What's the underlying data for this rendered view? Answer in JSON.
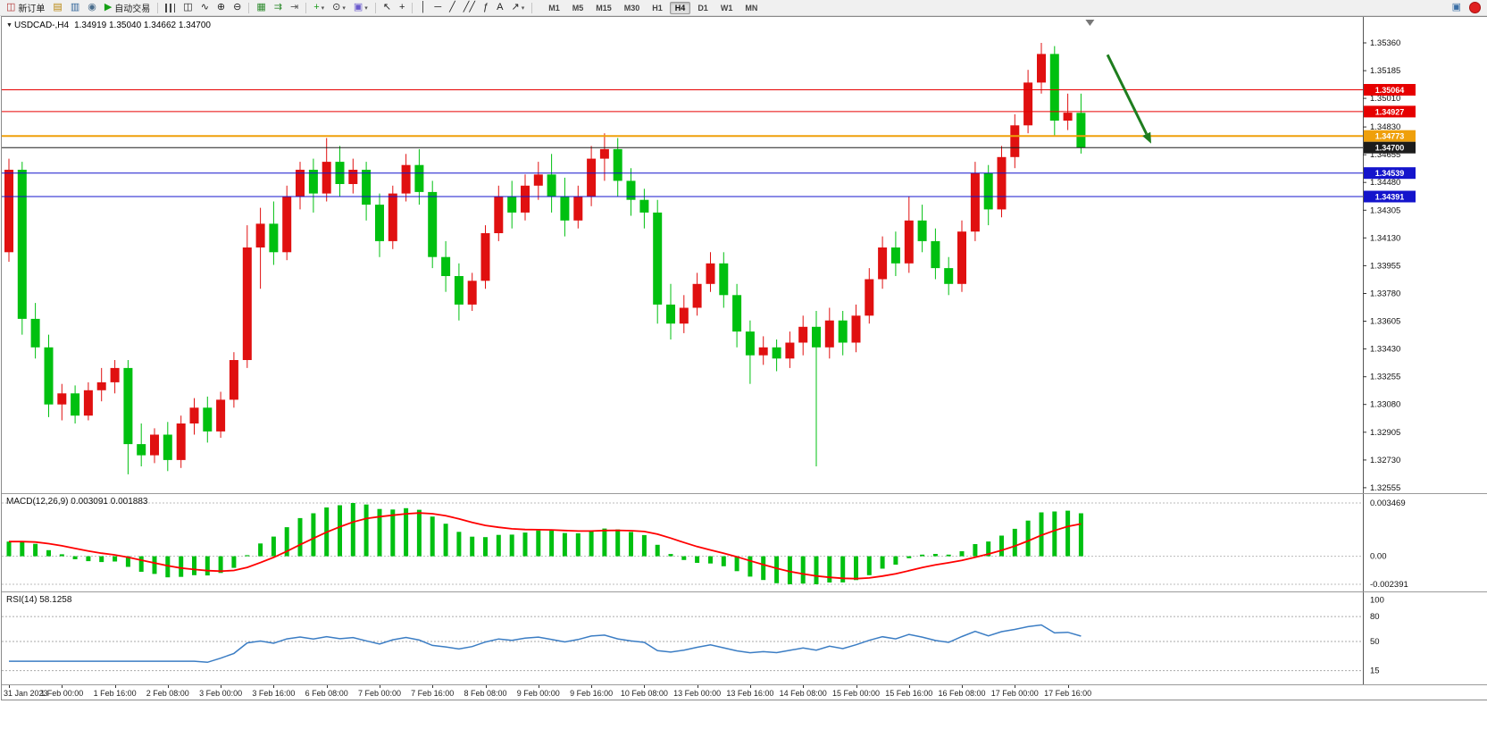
{
  "icons": {
    "chart_marker": "▼"
  },
  "toolbar": {
    "caret_glyph": "▾",
    "buttons": [
      {
        "name": "new-order-button",
        "icon_glyph": "◫",
        "icon_color": "#b03030",
        "label": "新订单"
      },
      {
        "name": "charts-grid-icon",
        "glyph": "▤",
        "color": "#b8860b"
      },
      {
        "name": "market-watch-icon",
        "glyph": "▥",
        "color": "#33669a"
      },
      {
        "name": "navigator-icon",
        "glyph": "◉",
        "color": "#4a6d8c"
      },
      {
        "name": "auto-trading-button",
        "icon_glyph": "▶",
        "icon_color": "#16a016",
        "label": "自动交易"
      },
      {
        "type": "sep"
      },
      {
        "name": "ohlc-bars-icon",
        "cls": "i-bars"
      },
      {
        "name": "candlestick-icon",
        "glyph": "◫",
        "color": "#222222"
      },
      {
        "name": "line-chart-icon",
        "glyph": "∿",
        "color": "#222222"
      },
      {
        "name": "zoom-in-icon",
        "glyph": "⊕",
        "color": "#222222"
      },
      {
        "name": "zoom-out-icon",
        "glyph": "⊖",
        "color": "#222222"
      },
      {
        "type": "sep"
      },
      {
        "name": "tile-windows-icon",
        "glyph": "▦",
        "color": "#2e8b2e"
      },
      {
        "name": "auto-scroll-icon",
        "glyph": "⇉",
        "color": "#2e8b2e"
      },
      {
        "name": "chart-shift-icon",
        "glyph": "⇥",
        "color": "#555555"
      },
      {
        "type": "sep"
      },
      {
        "name": "indicators-icon",
        "glyph": "+",
        "color": "#1a9a1a",
        "caret": true
      },
      {
        "name": "periods-icon",
        "glyph": "⊙",
        "color": "#333333",
        "caret": true
      },
      {
        "name": "templates-icon",
        "glyph": "▣",
        "color": "#6a5acd",
        "caret": true
      },
      {
        "type": "sep"
      },
      {
        "name": "cursor-icon",
        "glyph": "↖",
        "color": "#222222"
      },
      {
        "name": "crosshair-icon",
        "glyph": "+",
        "color": "#222222"
      },
      {
        "type": "sep"
      },
      {
        "name": "vertical-line-icon",
        "glyph": "│",
        "color": "#222222"
      },
      {
        "name": "horizontal-line-icon",
        "glyph": "─",
        "color": "#222222"
      },
      {
        "name": "trendline-icon",
        "glyph": "╱",
        "color": "#222222"
      },
      {
        "name": "channel-icon",
        "glyph": "╱╱",
        "color": "#222222"
      },
      {
        "name": "fibonacci-icon",
        "glyph": "ƒ",
        "color": "#222222"
      },
      {
        "name": "text-icon",
        "glyph": "A",
        "color": "#222222"
      },
      {
        "name": "arrows-icon",
        "glyph": "↗",
        "color": "#222222",
        "caret": true
      },
      {
        "type": "sep"
      }
    ],
    "timeframes": [
      "M1",
      "M5",
      "M15",
      "M30",
      "H1",
      "H4",
      "D1",
      "W1",
      "MN"
    ],
    "active_timeframe": "H4",
    "right_icons": [
      {
        "name": "chart-window-icon",
        "glyph": "▣",
        "color": "#3a6ea5"
      },
      {
        "name": "notification-badge",
        "badge": true
      }
    ]
  },
  "chart_data": {
    "type": "candlestick",
    "symbol_title": "USDCAD-,H4",
    "ohlc_text": "1.34919 1.35040 1.34662 1.34700",
    "ohlc": {
      "open": 1.34919,
      "high": 1.3504,
      "low": 1.34662,
      "close": 1.347
    },
    "price_axis_labels": [
      "1.35360",
      "1.35185",
      "1.35010",
      "1.34830",
      "1.34655",
      "1.34480",
      "1.34305",
      "1.34130",
      "1.33955",
      "1.33780",
      "1.33605",
      "1.33430",
      "1.33255",
      "1.33080",
      "1.32905",
      "1.32730",
      "1.32555"
    ],
    "x_labels": [
      "31 Jan 2023",
      "1 Feb 00:00",
      "1 Feb 16:00",
      "2 Feb 08:00",
      "3 Feb 00:00",
      "3 Feb 16:00",
      "6 Feb 08:00",
      "7 Feb 00:00",
      "7 Feb 16:00",
      "8 Feb 08:00",
      "9 Feb 00:00",
      "9 Feb 16:00",
      "10 Feb 08:00",
      "13 Feb 00:00",
      "13 Feb 16:00",
      "14 Feb 08:00",
      "15 Feb 00:00",
      "15 Feb 16:00",
      "16 Feb 08:00",
      "17 Feb 00:00",
      "17 Feb 16:00"
    ],
    "candles": {
      "open": [
        1.3404,
        1.3456,
        1.3362,
        1.3344,
        1.3308,
        1.3315,
        1.3301,
        1.3317,
        1.3322,
        1.3331,
        1.3283,
        1.3276,
        1.3289,
        1.3273,
        1.3296,
        1.3306,
        1.3291,
        1.3311,
        1.3336,
        1.3407,
        1.3422,
        1.3404,
        1.3439,
        1.3456,
        1.3441,
        1.3461,
        1.3447,
        1.3456,
        1.3434,
        1.3411,
        1.3441,
        1.3459,
        1.3442,
        1.3401,
        1.3389,
        1.3371,
        1.3386,
        1.3416,
        1.3439,
        1.3429,
        1.3446,
        1.3453,
        1.3439,
        1.3424,
        1.3439,
        1.3463,
        1.3469,
        1.3449,
        1.3437,
        1.3429,
        1.3371,
        1.3359,
        1.3369,
        1.3384,
        1.3397,
        1.3377,
        1.3354,
        1.3339,
        1.3344,
        1.3337,
        1.3347,
        1.3357,
        1.3344,
        1.3361,
        1.3347,
        1.3364,
        1.3387,
        1.3407,
        1.3397,
        1.3424,
        1.3411,
        1.3394,
        1.3384,
        1.3417,
        1.3454,
        1.3431,
        1.3464,
        1.3484,
        1.3511,
        1.3529,
        1.3487,
        1.34919
      ],
      "high": [
        1.3463,
        1.3461,
        1.3372,
        1.3352,
        1.3321,
        1.332,
        1.3322,
        1.3331,
        1.3336,
        1.3336,
        1.3296,
        1.3293,
        1.3297,
        1.3301,
        1.3312,
        1.3313,
        1.3316,
        1.3341,
        1.3421,
        1.3432,
        1.3436,
        1.3446,
        1.3461,
        1.3463,
        1.3476,
        1.3471,
        1.3463,
        1.3461,
        1.3441,
        1.3446,
        1.3466,
        1.3469,
        1.3449,
        1.3411,
        1.3397,
        1.3391,
        1.3421,
        1.3446,
        1.3449,
        1.3453,
        1.3461,
        1.3466,
        1.3451,
        1.3446,
        1.3471,
        1.3479,
        1.3476,
        1.3457,
        1.3444,
        1.3437,
        1.3384,
        1.3377,
        1.3391,
        1.3404,
        1.3404,
        1.3384,
        1.3361,
        1.3351,
        1.3349,
        1.3354,
        1.3364,
        1.3367,
        1.3369,
        1.3367,
        1.3371,
        1.3394,
        1.3414,
        1.3417,
        1.3439,
        1.3434,
        1.3419,
        1.3401,
        1.3424,
        1.3461,
        1.3459,
        1.3471,
        1.3491,
        1.3519,
        1.3536,
        1.3534,
        1.3504,
        1.3504
      ],
      "low": [
        1.3398,
        1.3352,
        1.3337,
        1.33,
        1.3298,
        1.3296,
        1.3298,
        1.331,
        1.3315,
        1.3264,
        1.3269,
        1.3271,
        1.3266,
        1.3268,
        1.3289,
        1.3284,
        1.3287,
        1.3306,
        1.3331,
        1.3381,
        1.3396,
        1.3399,
        1.3431,
        1.3429,
        1.3436,
        1.3439,
        1.3441,
        1.3424,
        1.3401,
        1.3406,
        1.3436,
        1.3434,
        1.3394,
        1.3379,
        1.3361,
        1.3367,
        1.3381,
        1.3411,
        1.3419,
        1.3424,
        1.3437,
        1.3429,
        1.3414,
        1.3419,
        1.3433,
        1.3449,
        1.3439,
        1.3427,
        1.3419,
        1.3359,
        1.3349,
        1.3353,
        1.3364,
        1.3379,
        1.3369,
        1.3344,
        1.3321,
        1.3333,
        1.3329,
        1.3331,
        1.3339,
        1.3269,
        1.3337,
        1.3339,
        1.3341,
        1.3359,
        1.3381,
        1.3389,
        1.3391,
        1.3404,
        1.3387,
        1.3377,
        1.3379,
        1.3411,
        1.3421,
        1.3426,
        1.3457,
        1.3479,
        1.3504,
        1.3477,
        1.3481,
        1.34662
      ],
      "close": [
        1.3456,
        1.3362,
        1.3344,
        1.3308,
        1.3315,
        1.3301,
        1.3317,
        1.3322,
        1.3331,
        1.3283,
        1.3276,
        1.3289,
        1.3273,
        1.3296,
        1.3306,
        1.3291,
        1.3311,
        1.3336,
        1.3407,
        1.3422,
        1.3404,
        1.3439,
        1.3456,
        1.3441,
        1.3461,
        1.3447,
        1.3456,
        1.3434,
        1.3411,
        1.3441,
        1.3459,
        1.3442,
        1.3401,
        1.3389,
        1.3371,
        1.3386,
        1.3416,
        1.3439,
        1.3429,
        1.3446,
        1.3453,
        1.3439,
        1.3424,
        1.3439,
        1.3463,
        1.3469,
        1.3449,
        1.3437,
        1.3429,
        1.3371,
        1.3359,
        1.3369,
        1.3384,
        1.3397,
        1.3377,
        1.3354,
        1.3339,
        1.3344,
        1.3337,
        1.3347,
        1.3357,
        1.3344,
        1.3361,
        1.3347,
        1.3364,
        1.3387,
        1.3407,
        1.3397,
        1.3424,
        1.3411,
        1.3394,
        1.3384,
        1.3417,
        1.3454,
        1.3431,
        1.3464,
        1.3484,
        1.3511,
        1.3529,
        1.3487,
        1.3492,
        1.347
      ]
    },
    "colors": {
      "bull": "#e01010",
      "bear": "#00c010",
      "macd_hist": "#00c010",
      "macd_signal": "#ff0000",
      "rsi_line": "#3b7dc4",
      "background": "#ffffff"
    },
    "horizontal_lines": [
      {
        "name": "resistance-line-1",
        "price": 1.35064,
        "label": "1.35064",
        "color": "#e60000",
        "width": 1
      },
      {
        "name": "resistance-line-2",
        "price": 1.34927,
        "label": "1.34927",
        "color": "#e60000",
        "width": 1
      },
      {
        "name": "pivot-line",
        "price": 1.34773,
        "label": "1.34773",
        "color": "#efa00b",
        "width": 2
      },
      {
        "name": "current-price-line",
        "price": 1.347,
        "label": "1.34700",
        "color": "#1c1c1c",
        "width": 1
      },
      {
        "name": "support-line-1",
        "price": 1.34539,
        "label": "1.34539",
        "color": "#1414cc",
        "width": 1
      },
      {
        "name": "support-line-2",
        "price": 1.34391,
        "label": "1.34391",
        "color": "#1414cc",
        "width": 1
      }
    ],
    "trend_arrow": {
      "from_bar": 83,
      "from_price": 1.35285,
      "to_bar": 86.3,
      "to_price": 1.34725,
      "color": "#1e7d1e"
    },
    "macd": {
      "title": "MACD(12,26,9)",
      "values": "0.003091 0.001883",
      "fast": 12,
      "slow": 26,
      "signal": 9,
      "axis_labels": [
        "0.003469",
        "0.00",
        "-0.002391"
      ]
    },
    "rsi": {
      "title": "RSI(14)",
      "value": "58.1258",
      "period": 14,
      "axis_labels": [
        "100",
        "80",
        "50",
        "15"
      ],
      "levels": [
        80,
        50,
        15
      ]
    }
  }
}
